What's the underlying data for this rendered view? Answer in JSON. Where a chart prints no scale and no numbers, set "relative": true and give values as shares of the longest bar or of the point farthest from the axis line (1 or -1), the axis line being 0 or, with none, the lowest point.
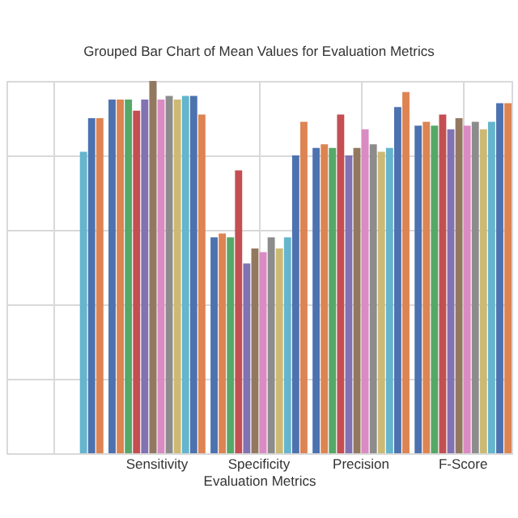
{
  "chart_data": {
    "type": "bar",
    "title": "Grouped Bar Chart of Mean Values for Evaluation Metrics",
    "xlabel": "Evaluation Metrics",
    "relative": true,
    "grid": true,
    "categories": [
      null,
      "Sensitivity",
      "Specificity",
      "Precision",
      "F-Score"
    ],
    "series": [
      {
        "color": "#4c72b0",
        "values": [
          null,
          0.95,
          0.58,
          0.82,
          0.88
        ]
      },
      {
        "color": "#dd8452",
        "values": [
          null,
          0.95,
          0.59,
          0.83,
          0.89
        ]
      },
      {
        "color": "#55a868",
        "values": [
          null,
          0.95,
          0.58,
          0.82,
          0.88
        ]
      },
      {
        "color": "#c44e52",
        "values": [
          null,
          0.92,
          0.76,
          0.91,
          0.91
        ]
      },
      {
        "color": "#8172b3",
        "values": [
          null,
          0.95,
          0.51,
          0.8,
          0.87
        ]
      },
      {
        "color": "#937860",
        "values": [
          null,
          1.0,
          0.55,
          0.82,
          0.9
        ]
      },
      {
        "color": "#da8bc3",
        "values": [
          null,
          0.95,
          0.54,
          0.87,
          0.88
        ]
      },
      {
        "color": "#8c8c8c",
        "values": [
          null,
          0.96,
          0.58,
          0.83,
          0.89
        ]
      },
      {
        "color": "#ccb974",
        "values": [
          null,
          0.95,
          0.55,
          0.81,
          0.87
        ]
      },
      {
        "color": "#64b5cd",
        "values": [
          0.81,
          0.96,
          0.58,
          0.82,
          0.89
        ]
      },
      {
        "color": "#4c72b0",
        "values": [
          0.9,
          0.96,
          0.8,
          0.93,
          0.94
        ]
      },
      {
        "color": "#dd8452",
        "values": [
          0.9,
          0.91,
          0.89,
          0.97,
          0.94
        ]
      }
    ]
  }
}
